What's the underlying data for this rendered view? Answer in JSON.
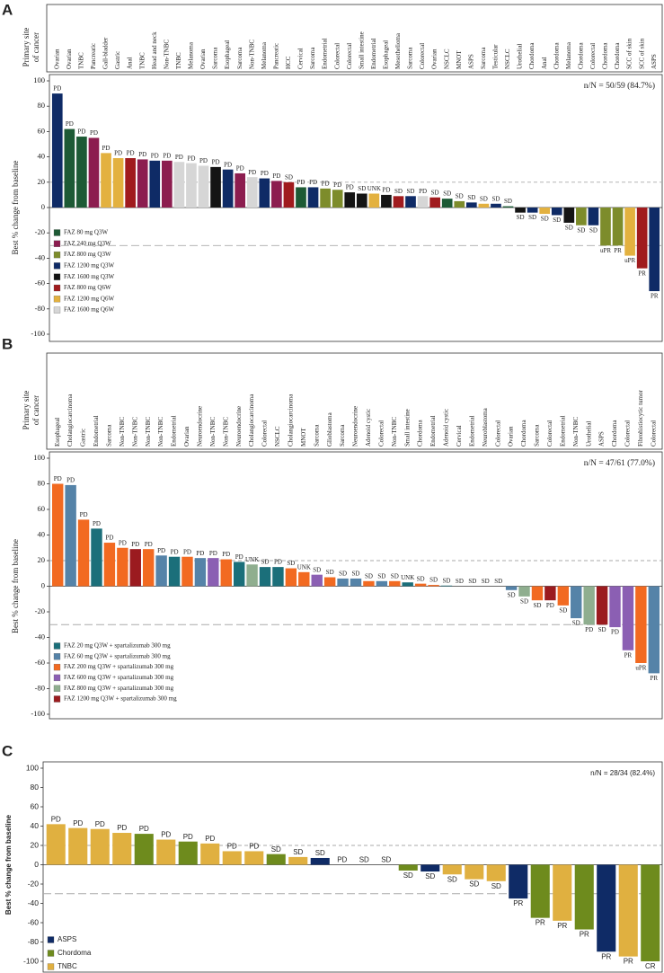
{
  "chart_data": [
    {
      "type": "bar",
      "panel": "A",
      "header_label": [
        "Primary site",
        "of cancer"
      ],
      "ylabel": "Best % change from baseline",
      "annotation": "n/N = 50/59 (84.7%)",
      "categories": [
        "Ovarian",
        "Ovarian",
        "TNBC",
        "Pancreatic",
        "Gall-bladder",
        "Gastric",
        "Anal",
        "TNBC",
        "Head and neck",
        "Non-TNBC",
        "TNBC",
        "Melanoma",
        "Ovarian",
        "Sarcoma",
        "Esophageal",
        "Sarcoma",
        "Non-TNBC",
        "Melanoma",
        "Pancreatic",
        "HCC",
        "Cervical",
        "Sarcoma",
        "Endometrial",
        "Colorectal",
        "Colorectal",
        "Small intestine",
        "Endometrial",
        "Esophageal",
        "Mesothelioma",
        "Sarcoma",
        "Colorectal",
        "Ovarian",
        "NSCLC",
        "MNOT",
        "ASPS",
        "Sarcoma",
        "Testicular",
        "NSCLC",
        "Urothelial",
        "Chordoma",
        "Anal",
        "Chordoma",
        "Melanoma",
        "Chordoma",
        "Colorectal",
        "Chordoma",
        "Chordoma",
        "SCC of skin",
        "SCC of skin",
        "ASPS"
      ],
      "values": [
        90,
        62,
        56,
        55,
        43,
        39,
        39,
        38,
        37,
        37,
        36,
        35,
        33,
        32,
        30,
        27,
        24,
        23,
        21,
        20,
        16,
        16,
        15,
        14,
        12,
        11,
        11,
        10,
        9,
        9,
        9,
        8,
        7,
        5,
        4,
        3,
        3,
        1,
        -4,
        -4,
        -5,
        -6,
        -12,
        -14,
        -14,
        -30,
        -30,
        -38,
        -48,
        -66
      ],
      "responses": [
        "PD",
        "PD",
        "PD",
        "PD",
        "PD",
        "PD",
        "PD",
        "PD",
        "PD",
        "PD",
        "PD",
        "PD",
        "PD",
        "PD",
        "PD",
        "PD",
        "PD",
        "PD",
        "PD",
        "SD",
        "PD",
        "PD",
        "PD",
        "PD",
        "PD",
        "SD",
        "UNK",
        "PD",
        "SD",
        "SD",
        "PD",
        "SD",
        "SD",
        "SD",
        "SD",
        "SD",
        "SD",
        "SD",
        "SD",
        "SD",
        "SD",
        "SD",
        "SD",
        "SD",
        "SD",
        "uPR",
        "PR",
        "uPR",
        "PR",
        "PR"
      ],
      "bar_colors": [
        "#0f2b66",
        "#1d5a35",
        "#1d5a35",
        "#8c1d4f",
        "#e3b13f",
        "#e3b13f",
        "#a01b1e",
        "#8c1d4f",
        "#0f2b66",
        "#8c1d4f",
        "#d6d6d6",
        "#d6d6d6",
        "#d6d6d6",
        "#141414",
        "#0f2b66",
        "#8c1d4f",
        "#d6d6d6",
        "#0f2b66",
        "#8c1d4f",
        "#a01b1e",
        "#1d5a35",
        "#0f2b66",
        "#7d8c2b",
        "#7d8c2b",
        "#141414",
        "#141414",
        "#e3b13f",
        "#141414",
        "#a01b1e",
        "#0f2b66",
        "#d6d6d6",
        "#a01b1e",
        "#1d5a35",
        "#7d8c2b",
        "#0f2b66",
        "#e3b13f",
        "#0f2b66",
        "#1d5a35",
        "#141414",
        "#0f2b66",
        "#e3b13f",
        "#0f2b66",
        "#141414",
        "#7d8c2b",
        "#0f2b66",
        "#7d8c2b",
        "#7d8c2b",
        "#e3b13f",
        "#a01b1e",
        "#0f2b66"
      ],
      "ylim": [
        -100,
        100
      ],
      "yticks": [
        -100,
        -80,
        -60,
        -40,
        -20,
        0,
        20,
        40,
        60,
        80,
        100
      ],
      "reference_lines": [
        20,
        -30
      ],
      "legend_position": "lower left",
      "legend_entries": [
        {
          "name": "FAZ 80 mg Q3W",
          "color": "#1d5a35"
        },
        {
          "name": "FAZ 240 mg Q3W",
          "color": "#8c1d4f"
        },
        {
          "name": "FAZ 800 mg Q3W",
          "color": "#7d8c2b"
        },
        {
          "name": "FAZ 1200 mg Q3W",
          "color": "#0f2b66"
        },
        {
          "name": "FAZ 1600 mg Q3W",
          "color": "#141414"
        },
        {
          "name": "FAZ 800 mg Q6W",
          "color": "#a01b1e"
        },
        {
          "name": "FAZ 1200 mg Q6W",
          "color": "#e3b13f"
        },
        {
          "name": "FAZ 1600 mg Q6W",
          "color": "#d6d6d6"
        }
      ]
    },
    {
      "type": "bar",
      "panel": "B",
      "header_label": [
        "Primary site",
        "of cancer"
      ],
      "ylabel": "Best % change from baseline",
      "annotation": "n/N = 47/61 (77.0%)",
      "categories": [
        "Esophageal",
        "Cholangiocarcinoma",
        "Gastric",
        "Endometrial",
        "Sarcoma",
        "Non-TNBC",
        "Non-TNBC",
        "Non-TNBC",
        "Non-TNBC",
        "Endometrial",
        "Ovarian",
        "Neuroendocrine",
        "Non-TNBC",
        "Non-TNBC",
        "Neuroendocrine",
        "Cholangiocarcinoma",
        "Colorectal",
        "NSCLC",
        "Cholangiocarcinoma",
        "MNOT",
        "Sarcoma",
        "Glioblastoma",
        "Sarcoma",
        "Neuroendocrine",
        "Adenoid cystic",
        "Colorectal",
        "Non-TNBC",
        "Small intestine",
        "Chordoma",
        "Endometrial",
        "Adenoid cystic",
        "Cervical",
        "Endometrial",
        "Neuroblastoma",
        "Colorectal",
        "Ovarian",
        "Chordoma",
        "Sarcoma",
        "Colorectal",
        "Endometrial",
        "Non-TNBC",
        "Urothelial",
        "ASPS",
        "Chordoma",
        "Colorectal",
        "Fibrohistiocytic tumor",
        "Colorectal"
      ],
      "values": [
        80,
        79,
        52,
        45,
        34,
        30,
        29,
        29,
        24,
        23,
        23,
        22,
        22,
        21,
        19,
        17,
        15,
        15,
        14,
        11,
        9,
        7,
        6,
        6,
        4,
        4,
        4,
        3,
        2,
        1,
        0.5,
        0,
        0,
        0,
        0,
        -3,
        -8,
        -11,
        -11,
        -15,
        -25,
        -30,
        -30,
        -32,
        -50,
        -60,
        -68
      ],
      "responses": [
        "PD",
        "PD",
        "PD",
        "PD",
        "PD",
        "PD",
        "PD",
        "PD",
        "PD",
        "PD",
        "PD",
        "PD",
        "PD",
        "PD",
        "PD",
        "UNK",
        "SD",
        "PD",
        "SD",
        "UNK",
        "SD",
        "SD",
        "SD",
        "SD",
        "SD",
        "SD",
        "SD",
        "UNK",
        "SD",
        "SD",
        "SD",
        "SD",
        "SD",
        "SD",
        "SD",
        "SD",
        "SD",
        "SD",
        "PD",
        "SD",
        "SD",
        "PD",
        "SD",
        "PD",
        "PR",
        "uPR",
        "PR"
      ],
      "bar_colors": [
        "#f26a21",
        "#5583a8",
        "#f26a21",
        "#1b6f7a",
        "#f26a21",
        "#f26a21",
        "#9b1b1f",
        "#f26a21",
        "#5583a8",
        "#1b6f7a",
        "#f26a21",
        "#5583a8",
        "#8b5fb3",
        "#f26a21",
        "#1b6f7a",
        "#8fae8f",
        "#1b6f7a",
        "#1b6f7a",
        "#f26a21",
        "#f26a21",
        "#8b5fb3",
        "#f26a21",
        "#5583a8",
        "#5583a8",
        "#f26a21",
        "#5583a8",
        "#f26a21",
        "#1b6f7a",
        "#f26a21",
        "#f26a21",
        "#1b6f7a",
        "#f26a21",
        "#f26a21",
        "#f26a21",
        "#f26a21",
        "#5583a8",
        "#8fae8f",
        "#f26a21",
        "#9b1b1f",
        "#f26a21",
        "#5583a8",
        "#8fae8f",
        "#9b1b1f",
        "#8b5fb3",
        "#8b5fb3",
        "#f26a21",
        "#5583a8"
      ],
      "ylim": [
        -100,
        100
      ],
      "yticks": [
        -100,
        -80,
        -60,
        -40,
        -20,
        0,
        20,
        40,
        60,
        80,
        100
      ],
      "reference_lines": [
        20,
        -30
      ],
      "legend_position": "lower left",
      "legend_entries": [
        {
          "name": "FAZ 20 mg Q3W + spartalizumab 300 mg",
          "color": "#1b6f7a"
        },
        {
          "name": "FAZ 60 mg Q3W + spartalizumab 300 mg",
          "color": "#5583a8"
        },
        {
          "name": "FAZ 200 mg Q3W + spartalizumab 300 mg",
          "color": "#f26a21"
        },
        {
          "name": "FAZ 600 mg Q3W + spartalizumab 300 mg",
          "color": "#8b5fb3"
        },
        {
          "name": "FAZ 800 mg Q3W + spartalizumab 300 mg",
          "color": "#8fae8f"
        },
        {
          "name": "FAZ 1200 mg Q3W + spartalizumab 300 mg",
          "color": "#9b1b1f"
        }
      ]
    },
    {
      "type": "bar",
      "panel": "C",
      "ylabel": "Best % change from baseline",
      "annotation": "n/N = 28/34 (82.4%)",
      "values": [
        42,
        38,
        37,
        33,
        32,
        26,
        24,
        22,
        14,
        14,
        11,
        8,
        7,
        0,
        0,
        0,
        -6,
        -7,
        -10,
        -15,
        -17,
        -35,
        -55,
        -58,
        -67,
        -90,
        -95,
        -100
      ],
      "responses": [
        "PD",
        "PD",
        "PD",
        "PD",
        "PD",
        "PD",
        "PD",
        "PD",
        "PD",
        "PD",
        "SD",
        "SD",
        "SD",
        "PD",
        "SD",
        "SD",
        "SD",
        "SD",
        "SD",
        "SD",
        "SD",
        "PR",
        "PR",
        "PR",
        "PR",
        "PR",
        "PR",
        "CR"
      ],
      "bar_colors": [
        "#e0b040",
        "#e0b040",
        "#e0b040",
        "#e0b040",
        "#6e8b1d",
        "#e0b040",
        "#6e8b1d",
        "#e0b040",
        "#e0b040",
        "#e0b040",
        "#6e8b1d",
        "#e0b040",
        "#0f2b66",
        "#0f2b66",
        "#0f2b66",
        "#0f2b66",
        "#6e8b1d",
        "#0f2b66",
        "#e0b040",
        "#e0b040",
        "#e0b040",
        "#0f2b66",
        "#6e8b1d",
        "#e0b040",
        "#6e8b1d",
        "#0f2b66",
        "#e0b040",
        "#6e8b1d"
      ],
      "ylim": [
        -100,
        100
      ],
      "yticks": [
        -100,
        -80,
        -60,
        -40,
        -20,
        0,
        20,
        40,
        60,
        80,
        100
      ],
      "reference_lines": [
        20,
        -30
      ],
      "legend_position": "lower left",
      "legend_entries": [
        {
          "name": "ASPS",
          "color": "#0f2b66"
        },
        {
          "name": "Chordoma",
          "color": "#6e8b1d"
        },
        {
          "name": "TNBC",
          "color": "#e0b040"
        }
      ]
    }
  ]
}
